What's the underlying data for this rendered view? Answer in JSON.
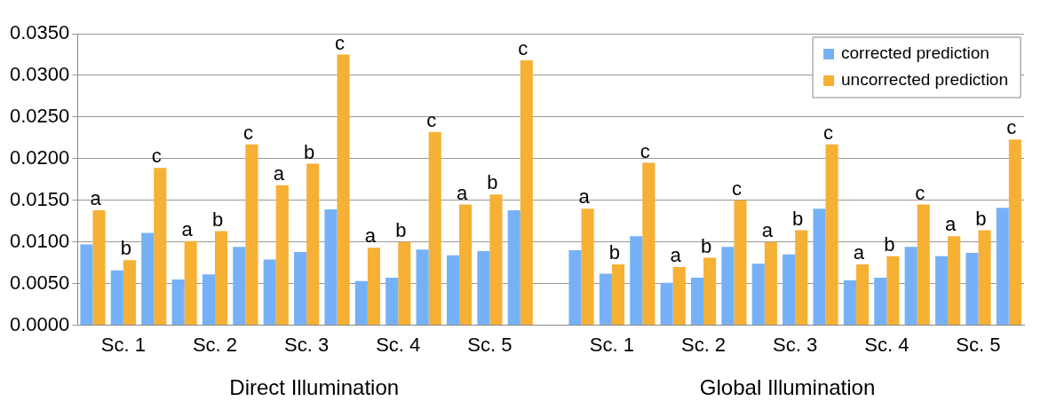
{
  "chart_data": {
    "type": "bar",
    "categories": [
      null,
      "Sc. 1",
      null,
      null,
      "Sc. 2",
      null,
      null,
      "Sc. 3",
      null,
      null,
      "Sc. 4",
      null,
      null,
      "Sc. 5",
      null,
      null,
      null,
      "Sc. 1",
      null,
      null,
      "Sc. 2",
      null,
      null,
      "Sc. 3",
      null,
      null,
      "Sc. 4",
      null,
      null,
      "Sc. 5",
      null
    ],
    "series": [
      {
        "name": "corrected prediction",
        "color": "#76b1f7",
        "values": [
          0.0097,
          0.0066,
          0.0111,
          0.0055,
          0.0061,
          0.0094,
          0.0079,
          0.0088,
          0.0139,
          0.0053,
          0.0057,
          0.0091,
          0.0084,
          0.0089,
          0.0138,
          null,
          0.009,
          0.0062,
          0.0107,
          0.0051,
          0.0057,
          0.0094,
          0.0074,
          0.0085,
          0.014,
          0.0054,
          0.0057,
          0.0094,
          0.0083,
          0.0087,
          0.0141
        ]
      },
      {
        "name": "uncorrected prediction",
        "color": "#f6b034",
        "values": [
          0.0138,
          0.0078,
          0.0189,
          0.0101,
          0.0113,
          0.0217,
          0.0168,
          0.0194,
          0.0325,
          0.0093,
          0.01,
          0.0232,
          0.0145,
          0.0157,
          0.0318,
          null,
          0.014,
          0.0073,
          0.0195,
          0.007,
          0.0081,
          0.015,
          0.01,
          0.0114,
          0.0217,
          0.0073,
          0.0083,
          0.0145,
          0.0107,
          0.0114,
          0.0223
        ],
        "value_labels": [
          "a",
          "b",
          "c",
          "a",
          "b",
          "c",
          "a",
          "b",
          "c",
          "a",
          "b",
          "c",
          "a",
          "b",
          "c",
          null,
          "a",
          "b",
          "c",
          "a",
          "b",
          "c",
          "a",
          "b",
          "c",
          "a",
          "b",
          "c",
          "a",
          "b",
          "c"
        ]
      }
    ],
    "ylim": [
      0,
      0.035
    ],
    "yticks": [
      {
        "value": 0,
        "label": "0.0000"
      },
      {
        "value": 0.005,
        "label": "0.0050"
      },
      {
        "value": 0.01,
        "label": "0.0100"
      },
      {
        "value": 0.015,
        "label": "0.0150"
      },
      {
        "value": 0.02,
        "label": "0.0200"
      },
      {
        "value": 0.025,
        "label": "0.0250"
      },
      {
        "value": 0.03,
        "label": "0.0300"
      },
      {
        "value": 0.035,
        "label": "0.0350"
      }
    ],
    "grid": "y",
    "legend": "top right",
    "annotations": [
      "Direct Illumination",
      "Global Illumination"
    ]
  }
}
